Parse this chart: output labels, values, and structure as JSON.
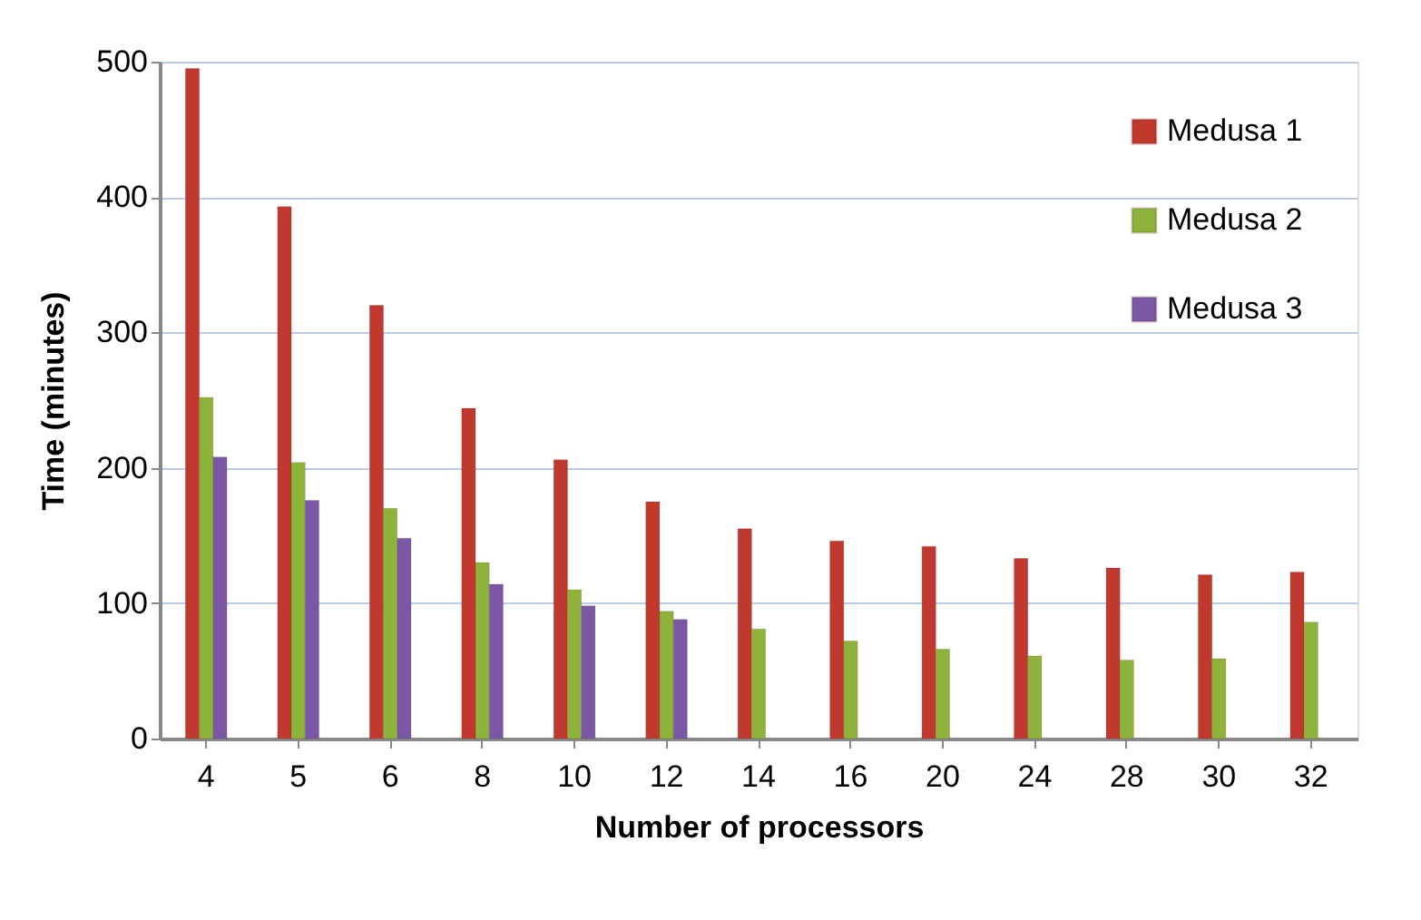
{
  "chart_data": {
    "type": "bar",
    "xlabel": "Number of processors",
    "ylabel": "Time (minutes)",
    "categories": [
      "4",
      "5",
      "6",
      "8",
      "10",
      "12",
      "14",
      "16",
      "20",
      "24",
      "28",
      "30",
      "32"
    ],
    "series": [
      {
        "name": "Medusa 1",
        "color": "#c0392f",
        "values": [
          495,
          393,
          320,
          244,
          206,
          175,
          155,
          146,
          142,
          133,
          126,
          121,
          123
        ]
      },
      {
        "name": "Medusa 2",
        "color": "#8db33a",
        "values": [
          252,
          204,
          170,
          130,
          110,
          94,
          81,
          72,
          66,
          61,
          58,
          59,
          86
        ]
      },
      {
        "name": "Medusa 3",
        "color": "#7a58a6",
        "values": [
          208,
          176,
          148,
          114,
          98,
          88,
          null,
          null,
          null,
          null,
          null,
          null,
          null
        ]
      }
    ],
    "ylim": [
      0,
      500
    ],
    "yticks": [
      0,
      100,
      200,
      300,
      400,
      500
    ],
    "grid": "y",
    "legend": "top right"
  }
}
